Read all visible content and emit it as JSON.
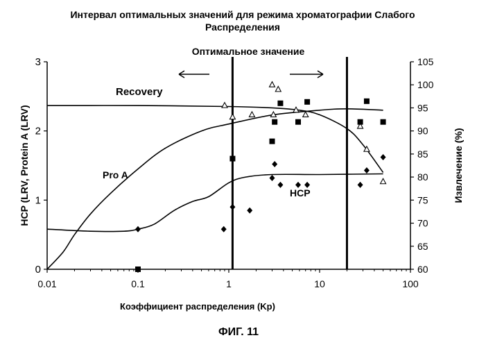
{
  "chart_data": {
    "type": "scatter",
    "title_line1": "Интервал оптимальных значений для режима хроматографии Слабого",
    "title_line2": "Распределения",
    "xlabel": "Коэффициент распределения (Kp)",
    "ylabel_left": "HCP (LRV, Protein A (LRV)",
    "ylabel_right": "Извлечение (%)",
    "x_scale": "log",
    "xlim": [
      0.01,
      100
    ],
    "x_ticks": [
      0.01,
      0.1,
      1,
      10,
      100
    ],
    "x_tick_labels": [
      "0.01",
      "0.1",
      "1",
      "10",
      "100"
    ],
    "ylim_left": [
      0,
      3
    ],
    "y_left_ticks": [
      "0",
      "1",
      "2",
      "3"
    ],
    "ylim_right": [
      60,
      105
    ],
    "y_right_ticks": [
      "60",
      "65",
      "70",
      "75",
      "80",
      "85",
      "90",
      "95",
      "100",
      "105"
    ],
    "optimal_label": "Оптимальное значение",
    "optimal_range": [
      1.1,
      20
    ],
    "annotations": {
      "recovery": "Recovery",
      "proa": "Pro A",
      "hcp": "HCP"
    },
    "series": [
      {
        "name": "Recovery",
        "marker": "triangle",
        "axis": "right",
        "points": [
          [
            0.9,
            95.5
          ],
          [
            1.1,
            93
          ],
          [
            1.8,
            93.5
          ],
          [
            3.0,
            100
          ],
          [
            3.1,
            93.5
          ],
          [
            3.5,
            99
          ],
          [
            5.5,
            94.5
          ],
          [
            7.0,
            93.5
          ],
          [
            28,
            91
          ],
          [
            33,
            86
          ],
          [
            50,
            79
          ]
        ]
      },
      {
        "name": "Protein A",
        "marker": "square",
        "axis": "left",
        "points": [
          [
            0.1,
            0.0
          ],
          [
            1.1,
            1.6
          ],
          [
            3.0,
            1.85
          ],
          [
            3.2,
            2.13
          ],
          [
            3.7,
            2.4
          ],
          [
            5.8,
            2.13
          ],
          [
            7.3,
            2.42
          ],
          [
            28,
            2.13
          ],
          [
            33,
            2.43
          ],
          [
            50,
            2.13
          ]
        ]
      },
      {
        "name": "HCP",
        "marker": "diamond",
        "axis": "left",
        "points": [
          [
            0.1,
            0.58
          ],
          [
            0.88,
            0.58
          ],
          [
            1.1,
            0.9
          ],
          [
            1.7,
            0.85
          ],
          [
            3.0,
            1.32
          ],
          [
            3.2,
            1.52
          ],
          [
            3.7,
            1.22
          ],
          [
            5.8,
            1.22
          ],
          [
            7.3,
            1.22
          ],
          [
            28,
            1.22
          ],
          [
            33,
            1.43
          ],
          [
            50,
            1.62
          ]
        ]
      }
    ],
    "curves": [
      {
        "name": "Recovery",
        "axis": "right",
        "points": [
          [
            0.01,
            95.5
          ],
          [
            0.1,
            95.5
          ],
          [
            1,
            95.3
          ],
          [
            3,
            95.0
          ],
          [
            6,
            94.5
          ],
          [
            10,
            93.5
          ],
          [
            20,
            90.5
          ],
          [
            30,
            87
          ],
          [
            50,
            81
          ]
        ]
      },
      {
        "name": "Pro A",
        "axis": "left",
        "points": [
          [
            0.01,
            0.0
          ],
          [
            0.015,
            0.25
          ],
          [
            0.02,
            0.5
          ],
          [
            0.03,
            0.8
          ],
          [
            0.05,
            1.1
          ],
          [
            0.1,
            1.45
          ],
          [
            0.2,
            1.75
          ],
          [
            0.5,
            2.0
          ],
          [
            1,
            2.1
          ],
          [
            3,
            2.23
          ],
          [
            10,
            2.3
          ],
          [
            20,
            2.32
          ],
          [
            50,
            2.3
          ]
        ]
      },
      {
        "name": "HCP",
        "axis": "left",
        "points": [
          [
            0.01,
            0.58
          ],
          [
            0.03,
            0.55
          ],
          [
            0.07,
            0.55
          ],
          [
            0.1,
            0.58
          ],
          [
            0.15,
            0.65
          ],
          [
            0.25,
            0.85
          ],
          [
            0.4,
            0.98
          ],
          [
            0.6,
            1.05
          ],
          [
            1,
            1.25
          ],
          [
            1.5,
            1.33
          ],
          [
            3,
            1.37
          ],
          [
            10,
            1.37
          ],
          [
            50,
            1.38
          ]
        ]
      }
    ],
    "figure_caption": "ФИГ. 11",
    "colors": {
      "ink": "#000000",
      "background": "#ffffff"
    }
  }
}
